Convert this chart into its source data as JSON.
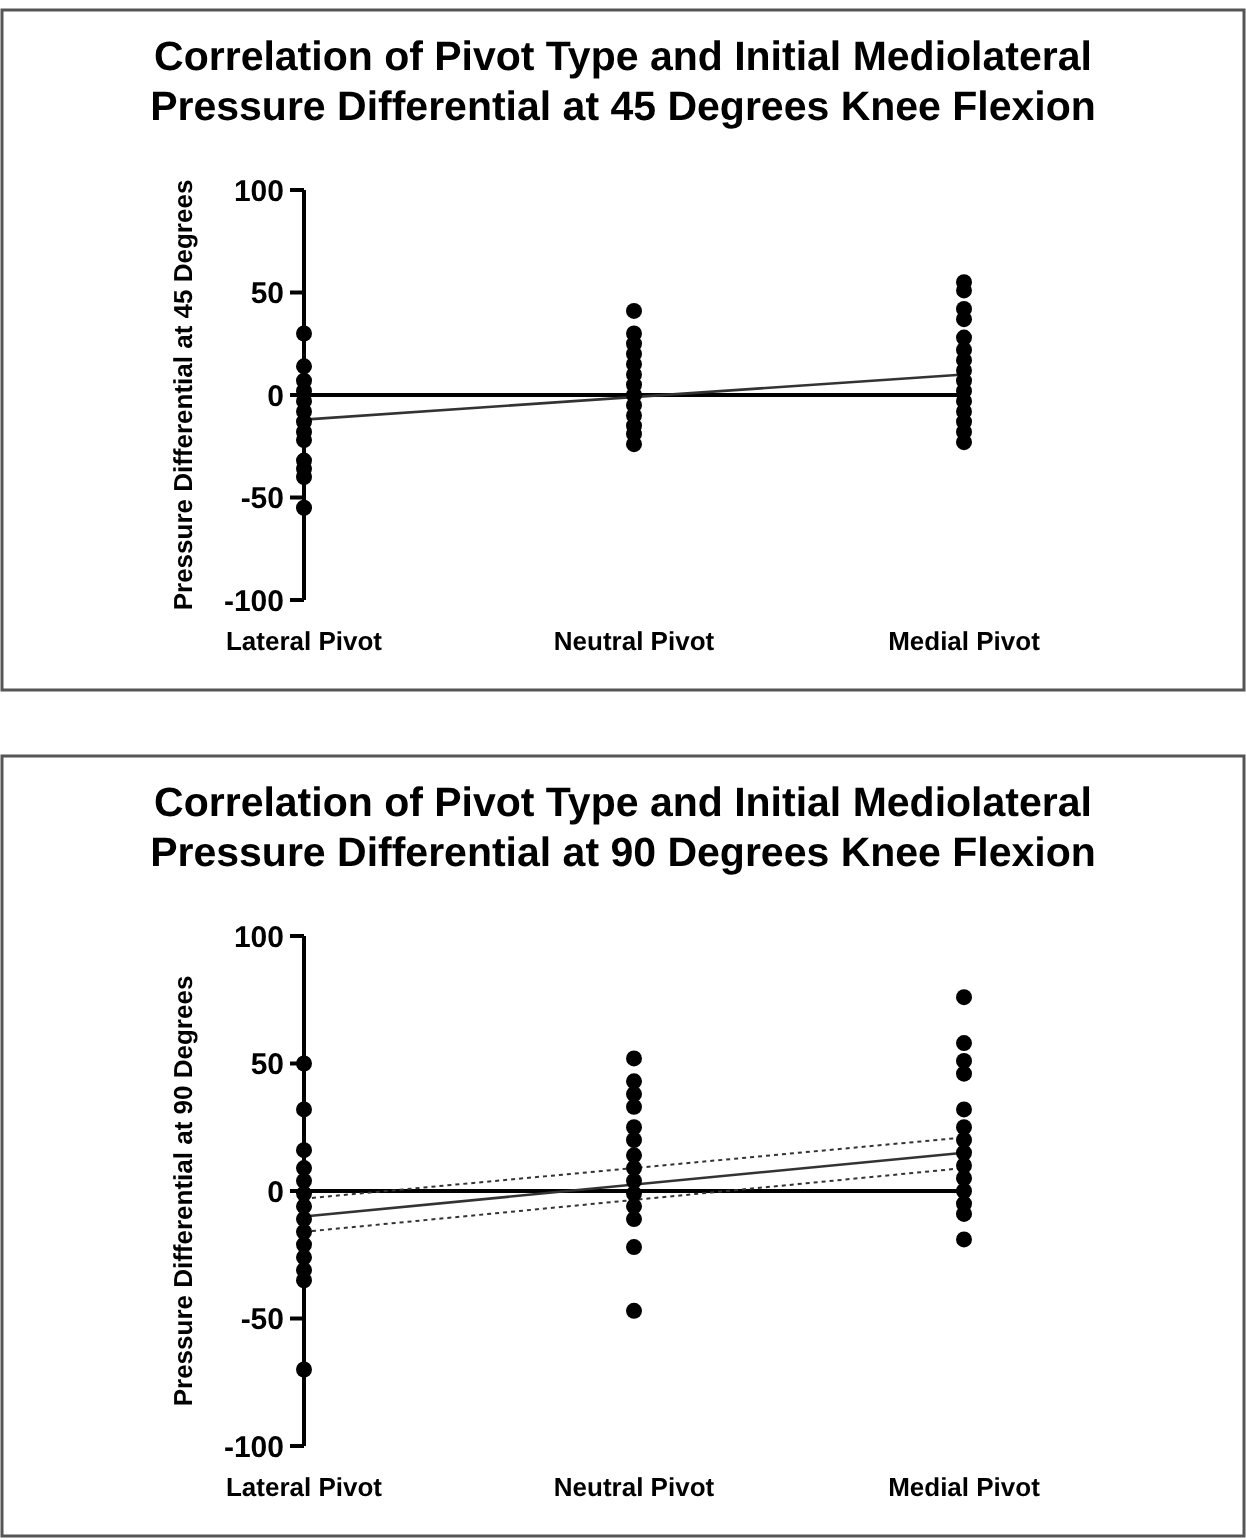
{
  "chart_data": [
    {
      "type": "scatter",
      "title": "Correlation of Pivot Type and Initial Mediolateral Pressure Differential at 45 Degrees Knee Flexion",
      "ylabel": "Pressure Differential at 45 Degrees",
      "categories": [
        "Lateral Pivot",
        "Neutral Pivot",
        "Medial Pivot"
      ],
      "ylim": [
        -100,
        100
      ],
      "yticks": [
        -100,
        -50,
        0,
        50,
        100
      ],
      "grid": false,
      "marker": "circle",
      "ref_lines": [
        {
          "axis": "y",
          "value": 0,
          "color": "#000000"
        }
      ],
      "series": [
        {
          "color": "#000000",
          "x": [
            "Lateral Pivot",
            "Lateral Pivot",
            "Lateral Pivot",
            "Lateral Pivot",
            "Lateral Pivot",
            "Lateral Pivot",
            "Lateral Pivot",
            "Lateral Pivot",
            "Lateral Pivot",
            "Lateral Pivot",
            "Lateral Pivot",
            "Lateral Pivot",
            "Lateral Pivot"
          ],
          "values": [
            30,
            14,
            7,
            2,
            -3,
            -8,
            -13,
            -18,
            -22,
            -32,
            -36,
            -40,
            -55
          ]
        },
        {
          "color": "#000000",
          "x": [
            "Neutral Pivot",
            "Neutral Pivot",
            "Neutral Pivot",
            "Neutral Pivot",
            "Neutral Pivot",
            "Neutral Pivot",
            "Neutral Pivot",
            "Neutral Pivot",
            "Neutral Pivot",
            "Neutral Pivot",
            "Neutral Pivot",
            "Neutral Pivot",
            "Neutral Pivot"
          ],
          "values": [
            41,
            30,
            25,
            20,
            15,
            10,
            5,
            0,
            -5,
            -10,
            -15,
            -19,
            -24
          ]
        },
        {
          "color": "#000000",
          "x": [
            "Medial Pivot",
            "Medial Pivot",
            "Medial Pivot",
            "Medial Pivot",
            "Medial Pivot",
            "Medial Pivot",
            "Medial Pivot",
            "Medial Pivot",
            "Medial Pivot",
            "Medial Pivot",
            "Medial Pivot",
            "Medial Pivot",
            "Medial Pivot",
            "Medial Pivot",
            "Medial Pivot"
          ],
          "values": [
            55,
            51,
            42,
            37,
            28,
            22,
            17,
            12,
            7,
            2,
            -3,
            -8,
            -13,
            -18,
            -23
          ]
        },
        {
          "type": "line",
          "marker": "none",
          "color": "#333333",
          "x": [
            "Lateral Pivot",
            "Medial Pivot"
          ],
          "values": [
            -12,
            10
          ]
        }
      ]
    },
    {
      "type": "scatter",
      "title": "Correlation of Pivot Type and Initial Mediolateral Pressure Differential at 90 Degrees Knee Flexion",
      "ylabel": "Pressure Differential at 90 Degrees",
      "categories": [
        "Lateral Pivot",
        "Neutral Pivot",
        "Medial Pivot"
      ],
      "ylim": [
        -100,
        100
      ],
      "yticks": [
        -100,
        -50,
        0,
        50,
        100
      ],
      "grid": false,
      "marker": "circle",
      "ref_lines": [
        {
          "axis": "y",
          "value": 0,
          "color": "#000000"
        }
      ],
      "series": [
        {
          "color": "#000000",
          "x": [
            "Lateral Pivot",
            "Lateral Pivot",
            "Lateral Pivot",
            "Lateral Pivot",
            "Lateral Pivot",
            "Lateral Pivot",
            "Lateral Pivot",
            "Lateral Pivot",
            "Lateral Pivot",
            "Lateral Pivot",
            "Lateral Pivot",
            "Lateral Pivot",
            "Lateral Pivot",
            "Lateral Pivot"
          ],
          "values": [
            50,
            32,
            16,
            9,
            4,
            -1,
            -6,
            -11,
            -16,
            -21,
            -26,
            -31,
            -35,
            -70
          ]
        },
        {
          "color": "#000000",
          "x": [
            "Neutral Pivot",
            "Neutral Pivot",
            "Neutral Pivot",
            "Neutral Pivot",
            "Neutral Pivot",
            "Neutral Pivot",
            "Neutral Pivot",
            "Neutral Pivot",
            "Neutral Pivot",
            "Neutral Pivot",
            "Neutral Pivot",
            "Neutral Pivot",
            "Neutral Pivot",
            "Neutral Pivot"
          ],
          "values": [
            52,
            43,
            38,
            33,
            25,
            20,
            14,
            9,
            4,
            -1,
            -6,
            -11,
            -22,
            -47
          ]
        },
        {
          "color": "#000000",
          "x": [
            "Medial Pivot",
            "Medial Pivot",
            "Medial Pivot",
            "Medial Pivot",
            "Medial Pivot",
            "Medial Pivot",
            "Medial Pivot",
            "Medial Pivot",
            "Medial Pivot",
            "Medial Pivot",
            "Medial Pivot",
            "Medial Pivot",
            "Medial Pivot",
            "Medial Pivot"
          ],
          "values": [
            76,
            58,
            51,
            46,
            32,
            25,
            20,
            15,
            10,
            5,
            0,
            -5,
            -9,
            -19
          ]
        },
        {
          "type": "line",
          "marker": "none",
          "color": "#333333",
          "x": [
            "Lateral Pivot",
            "Medial Pivot"
          ],
          "values": [
            -10,
            15
          ]
        },
        {
          "type": "line",
          "marker": "none",
          "line_style": "dotted",
          "color": "#333333",
          "x": [
            "Lateral Pivot",
            "Medial Pivot"
          ],
          "values": [
            -16,
            9
          ]
        },
        {
          "type": "line",
          "marker": "none",
          "line_style": "dotted",
          "color": "#333333",
          "x": [
            "Lateral Pivot",
            "Medial Pivot"
          ],
          "values": [
            -3,
            21
          ]
        }
      ]
    }
  ]
}
